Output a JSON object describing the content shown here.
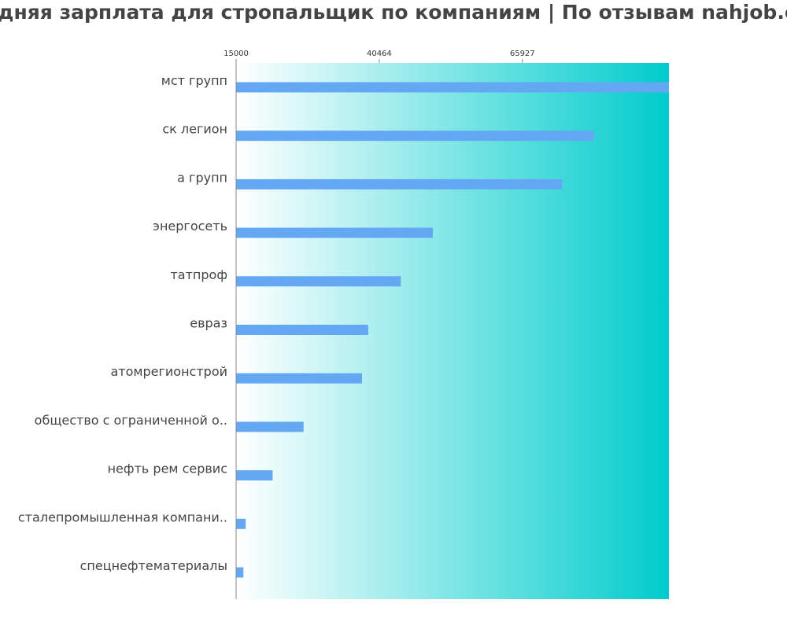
{
  "chart_data": {
    "type": "bar",
    "orientation": "horizontal",
    "title": "Средняя зарплата для стропальщик по компаниям  | По отзывам nahjob.club",
    "categories": [
      "мст групп",
      "ск легион",
      "а групп",
      "энергосеть",
      "татпроф",
      "евраз",
      "атомрегионстрой",
      "общество с ограниченной о..",
      "нефть рем сервис",
      "сталепромышленная компани..",
      "спецнефтематериалы"
    ],
    "values": [
      92000,
      78700,
      73000,
      50000,
      44300,
      38500,
      37400,
      27000,
      21500,
      16700,
      16300
    ],
    "x_ticks": [
      15000,
      40464,
      65927
    ],
    "x_tick_labels": [
      "15000",
      "40464",
      "65927"
    ],
    "xlim": [
      15000,
      92000
    ],
    "xlabel": "",
    "ylabel": "",
    "grid": false,
    "colors": {
      "bar": "#64a8f4",
      "background_start": "#ffffff",
      "background_end": "#00cccc",
      "axis": "#888888",
      "text": "#444444"
    }
  }
}
